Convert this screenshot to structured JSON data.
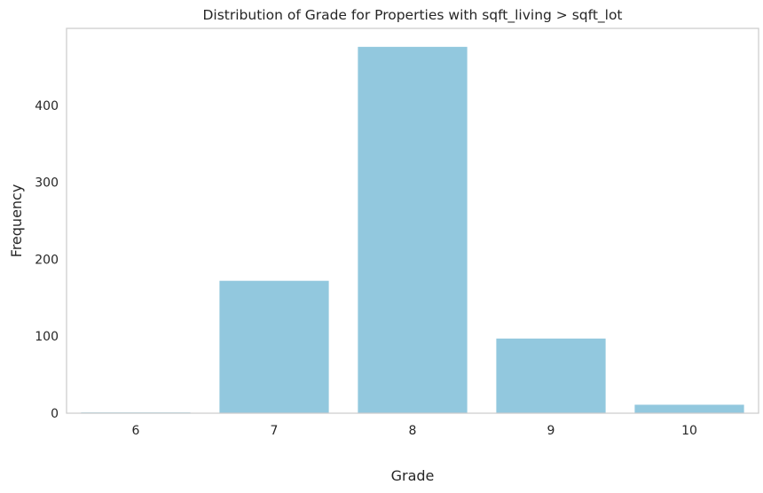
{
  "chart_data": {
    "type": "bar",
    "title": "Distribution of Grade for Properties with sqft_living > sqft_lot",
    "xlabel": "Grade",
    "ylabel": "Frequency",
    "categories": [
      "6",
      "7",
      "8",
      "9",
      "10"
    ],
    "values": [
      1,
      172,
      476,
      97,
      11
    ],
    "ylim": [
      0,
      500
    ],
    "yticks": [
      0,
      100,
      200,
      300,
      400
    ],
    "grid": false,
    "legend": "none",
    "colors": {
      "bar": "#92c8de",
      "frame": "#cccccc",
      "text": "#262626"
    }
  }
}
